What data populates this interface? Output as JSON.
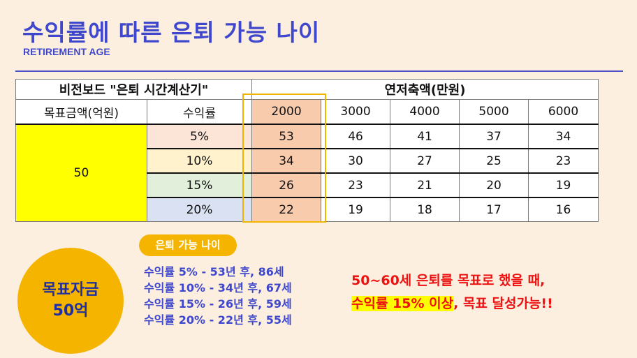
{
  "title": "수익률에 따른 은퇴 가능 나이",
  "subtitle": "RETIREMENT AGE",
  "table": {
    "title": "비전보드 \"은퇴 시간계산기\"",
    "savings_header": "연저축액(만원)",
    "goal_header": "목표금액(억원)",
    "rate_header": "수익률",
    "savings": [
      "2000",
      "3000",
      "4000",
      "5000",
      "6000"
    ],
    "goal_value": "50",
    "rows": [
      {
        "rate": "5%",
        "rate_color": "#fce4d6",
        "values": [
          "53",
          "46",
          "41",
          "37",
          "34"
        ]
      },
      {
        "rate": "10%",
        "rate_color": "#fff2cc",
        "values": [
          "34",
          "30",
          "27",
          "25",
          "23"
        ]
      },
      {
        "rate": "15%",
        "rate_color": "#e2efda",
        "values": [
          "26",
          "23",
          "21",
          "20",
          "19"
        ]
      },
      {
        "rate": "20%",
        "rate_color": "#d9e1f2",
        "values": [
          "22",
          "19",
          "18",
          "17",
          "16"
        ]
      }
    ]
  },
  "pill_label": "은퇴 가능 나이",
  "goal_badge": {
    "line1": "목표자금",
    "line2": "50억"
  },
  "results": [
    "수익률 5% - 53년 후, 86세",
    "수익률 10% - 34년 후, 67세",
    "수익률 15% - 26년 후, 59세",
    "수익률 20% - 22년 후, 55세"
  ],
  "note": {
    "line1": "50~60세 은퇴를 목표로 했을 때,",
    "line2_highlight": "수익률 15% 이상",
    "line2_rest": ", 목표 달성가능!!"
  },
  "colors": {
    "accent": "#3f48cc",
    "highlight_column": "#f8cbad",
    "goal_cell": "#ffff00",
    "note": "#ee1111",
    "badge": "#f5b400"
  }
}
